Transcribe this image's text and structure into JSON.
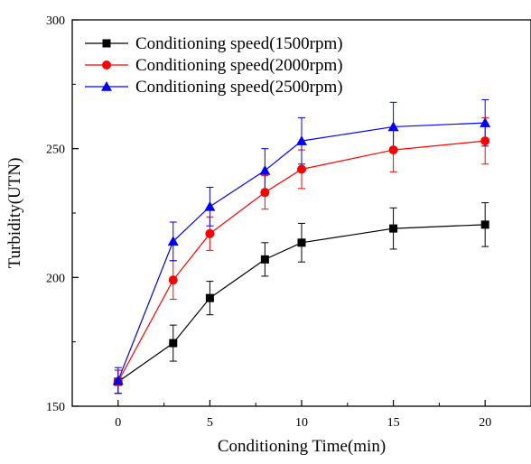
{
  "chart_data": {
    "type": "line",
    "title": "",
    "xlabel": "Conditioning Time(min)",
    "ylabel": "Turbidity(UTN)",
    "xlim": [
      -2.5,
      22.5
    ],
    "ylim": [
      150,
      300
    ],
    "xticks": [
      0,
      5,
      10,
      15,
      20
    ],
    "yticks": [
      150,
      200,
      250,
      300
    ],
    "x": [
      0,
      3,
      5,
      8,
      10,
      15,
      20
    ],
    "legend_position": "top-left",
    "grid": false,
    "series": [
      {
        "name": "Conditioning speed(1500rpm)",
        "color": "#000000",
        "marker": "square",
        "values": [
          159.5,
          174.5,
          192,
          207,
          213.5,
          219,
          220.5
        ],
        "error": [
          4.5,
          7,
          6.5,
          6.5,
          7.5,
          8,
          8.5
        ]
      },
      {
        "name": "Conditioning speed(2000rpm)",
        "color": "#ff0000",
        "marker": "circle",
        "values": [
          159.5,
          199,
          217,
          233,
          242,
          249.5,
          253
        ],
        "error": [
          4.5,
          7.5,
          6.5,
          6.5,
          7.5,
          8.5,
          9
        ]
      },
      {
        "name": "Conditioning speed(2500rpm)",
        "color": "#0000ff",
        "marker": "triangle",
        "values": [
          160,
          214,
          227.5,
          241.5,
          253,
          258.5,
          260
        ],
        "error": [
          5,
          7.5,
          7.5,
          8.5,
          9,
          9.5,
          9
        ]
      }
    ]
  }
}
